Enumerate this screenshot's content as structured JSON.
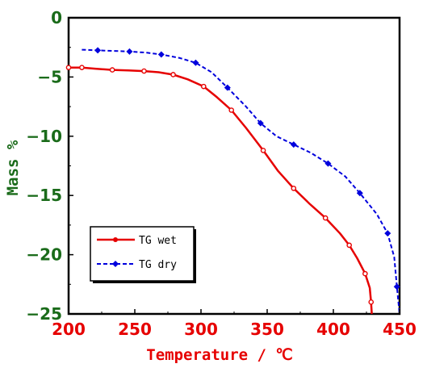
{
  "chart_data": {
    "type": "line",
    "title": "",
    "xlabel": "Temperature / ℃",
    "ylabel": "Mass %",
    "xlim": [
      200,
      450
    ],
    "ylim": [
      -25,
      0
    ],
    "xticks": [
      "200",
      "250",
      "300",
      "350",
      "400",
      "450"
    ],
    "yticks": [
      "0",
      "-5",
      "-10",
      "-15",
      "-20",
      "-25"
    ],
    "grid": false,
    "legend_position": "bottom-left",
    "series": [
      {
        "name": "TG wet",
        "color": "#e60000",
        "line_style": "solid",
        "marker": "circle",
        "x": [
          200,
          210,
          220,
          233,
          245,
          257,
          268,
          279,
          290,
          302,
          312,
          323,
          334,
          347,
          358,
          370,
          382,
          394,
          405,
          412,
          418,
          424,
          427.5,
          428.5,
          429
        ],
        "y": [
          -4.2,
          -4.2,
          -4.3,
          -4.4,
          -4.45,
          -4.5,
          -4.6,
          -4.8,
          -5.2,
          -5.8,
          -6.7,
          -7.8,
          -9.3,
          -11.2,
          -12.9,
          -14.4,
          -15.7,
          -16.9,
          -18.2,
          -19.2,
          -20.3,
          -21.6,
          -22.8,
          -24,
          -25
        ]
      },
      {
        "name": "TG dry",
        "color": "#0000dd",
        "line_style": "dashed",
        "marker": "diamond",
        "x": [
          210,
          222,
          234,
          246,
          259,
          270,
          284,
          296,
          308,
          320,
          334,
          345,
          357,
          370,
          383,
          396,
          409,
          420,
          433,
          441,
          446,
          448,
          450
        ],
        "y": [
          -2.7,
          -2.75,
          -2.8,
          -2.85,
          -2.95,
          -3.1,
          -3.4,
          -3.8,
          -4.6,
          -5.9,
          -7.5,
          -8.9,
          -10.0,
          -10.7,
          -11.4,
          -12.3,
          -13.4,
          -14.8,
          -16.6,
          -18.2,
          -20.2,
          -22.7,
          -25
        ]
      }
    ]
  }
}
